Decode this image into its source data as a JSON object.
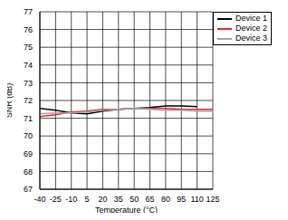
{
  "chart_data": {
    "type": "line",
    "x_label": "Temperature (°C)",
    "y_label": "SNR (dB)",
    "x": [
      -40,
      -25,
      -10,
      5,
      20,
      35,
      50,
      65,
      80,
      95,
      110,
      125
    ],
    "xlim": [
      -40,
      125
    ],
    "xticks": [
      -40,
      -25,
      -10,
      5,
      20,
      35,
      50,
      65,
      80,
      95,
      110,
      125
    ],
    "ylim": [
      67,
      77
    ],
    "yticks": [
      67,
      68,
      69,
      70,
      71,
      72,
      73,
      74,
      75,
      76,
      77
    ],
    "grid": true,
    "legend": "upper right",
    "series": [
      {
        "name": "Device 1",
        "color": "#000000",
        "values": [
          71.55,
          71.45,
          71.3,
          71.25,
          71.4,
          71.5,
          71.55,
          71.6,
          71.7,
          71.7,
          71.65,
          null
        ]
      },
      {
        "name": "Device 2",
        "color": "#e8262b",
        "values": [
          71.1,
          71.2,
          71.35,
          71.4,
          71.5,
          71.5,
          71.55,
          71.55,
          71.55,
          71.5,
          71.5,
          71.5
        ]
      },
      {
        "name": "Device 3",
        "color": "#a6a6a6",
        "values": [
          71.25,
          71.3,
          71.3,
          71.35,
          71.45,
          71.5,
          71.55,
          71.5,
          71.45,
          71.45,
          71.4,
          71.4
        ]
      }
    ]
  }
}
